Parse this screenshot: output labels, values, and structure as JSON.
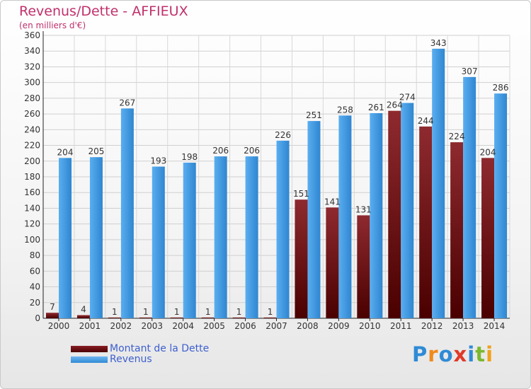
{
  "title": "Revenus/Dette - AFFIEUX",
  "subtitle": "(en milliers d'€)",
  "colors": {
    "debt": "#7a1a22",
    "revenue": "#4aa3e8",
    "title": "#c0306b"
  },
  "legend": {
    "debt_label": "Montant de la Dette",
    "revenue_label": "Revenus"
  },
  "logo": {
    "text": "Proxiti",
    "letters": [
      "P",
      "r",
      "o",
      "x",
      "i",
      "t",
      "i"
    ]
  },
  "chart_data": {
    "type": "bar",
    "categories": [
      "2000",
      "2001",
      "2002",
      "2003",
      "2004",
      "2005",
      "2006",
      "2007",
      "2008",
      "2009",
      "2010",
      "2011",
      "2012",
      "2013",
      "2014"
    ],
    "series": [
      {
        "name": "Montant de la Dette",
        "values": [
          7,
          4,
          1,
          1,
          1,
          1,
          1,
          1,
          151,
          141,
          131,
          264,
          244,
          224,
          204
        ]
      },
      {
        "name": "Revenus",
        "values": [
          204,
          205,
          267,
          193,
          198,
          206,
          206,
          226,
          251,
          258,
          261,
          274,
          343,
          307,
          286
        ]
      }
    ],
    "ylim": [
      0,
      360
    ],
    "yticks": [
      0,
      20,
      40,
      60,
      80,
      100,
      120,
      140,
      160,
      180,
      200,
      220,
      240,
      260,
      280,
      300,
      320,
      340,
      360
    ],
    "grid": true,
    "legend_position": "bottom-left"
  }
}
